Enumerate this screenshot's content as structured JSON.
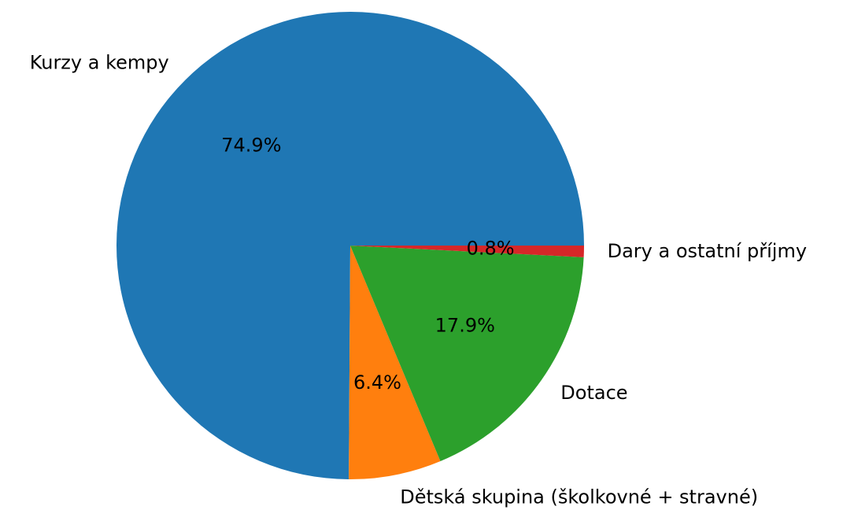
{
  "chart_data": {
    "type": "pie",
    "categories": [
      "Kurzy a kempy",
      "Dětská skupina (školkovné + stravné)",
      "Dotace",
      "Dary a ostatní příjmy"
    ],
    "values": [
      74.9,
      6.4,
      17.9,
      0.8
    ],
    "value_labels": [
      "74.9%",
      "6.4%",
      "17.9%",
      "0.8%"
    ],
    "colors": [
      "#1f77b4",
      "#ff7f0e",
      "#2ca02c",
      "#d62728"
    ]
  }
}
